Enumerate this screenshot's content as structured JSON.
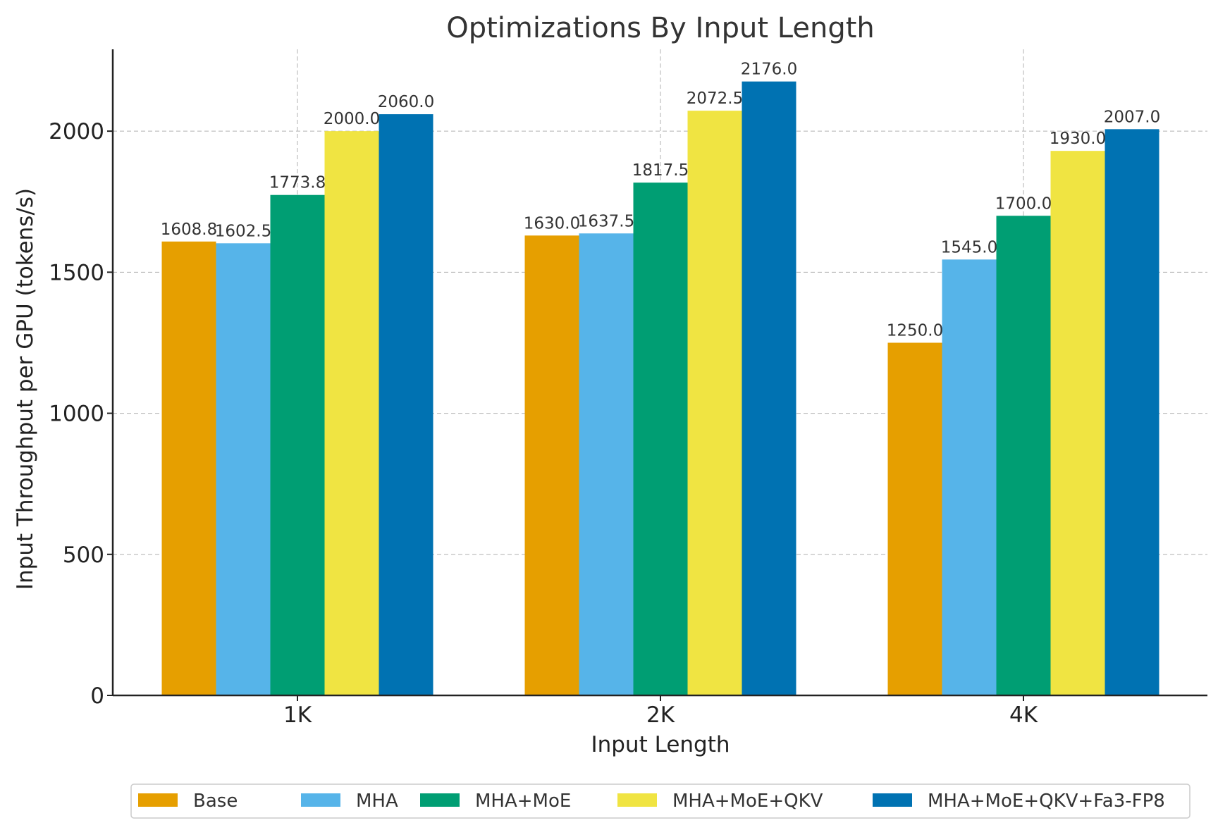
{
  "chart_data": {
    "type": "bar",
    "title": "Optimizations By Input Length",
    "xlabel": "Input Length",
    "ylabel": "Input Throughput per GPU (tokens/s)",
    "categories": [
      "1K",
      "2K",
      "4K"
    ],
    "ylim": [
      0,
      2290
    ],
    "yticks": [
      0,
      500,
      1000,
      1500,
      2000
    ],
    "grid": true,
    "legend_position": "bottom-center",
    "series": [
      {
        "name": "Base",
        "color": "#E69F00",
        "values": [
          1608.8,
          1630.0,
          1250.0
        ],
        "labels": [
          "1608.8",
          "1630.0",
          "1250.0"
        ]
      },
      {
        "name": "MHA",
        "color": "#56B4E9",
        "values": [
          1602.5,
          1637.5,
          1545.0
        ],
        "labels": [
          "1602.5",
          "1637.5",
          "1545.0"
        ]
      },
      {
        "name": "MHA+MoE",
        "color": "#009E73",
        "values": [
          1773.8,
          1817.5,
          1700.0
        ],
        "labels": [
          "1773.8",
          "1817.5",
          "1700.0"
        ]
      },
      {
        "name": "MHA+MoE+QKV",
        "color": "#F0E442",
        "values": [
          2000.0,
          2072.5,
          1930.0
        ],
        "labels": [
          "2000.0",
          "2072.5",
          "1930.0"
        ]
      },
      {
        "name": "MHA+MoE+QKV+Fa3-FP8",
        "color": "#0072B2",
        "values": [
          2060.0,
          2176.0,
          2007.0
        ],
        "labels": [
          "2060.0",
          "2176.0",
          "2007.0"
        ]
      }
    ]
  }
}
